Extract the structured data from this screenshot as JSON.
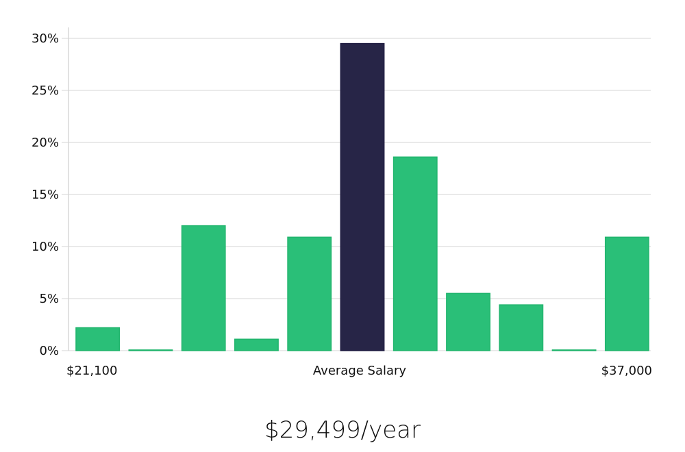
{
  "chart_data": {
    "type": "bar",
    "ylim": [
      0,
      30
    ],
    "yticks": [
      0,
      5,
      10,
      15,
      20,
      25,
      30
    ],
    "ytick_format": "%",
    "values": [
      2.2,
      0.05,
      12.0,
      1.1,
      10.9,
      29.5,
      18.6,
      5.5,
      4.4,
      0.05,
      10.9
    ],
    "highlight_index": 5,
    "x_labels": {
      "left": "$21,100",
      "center": "Average Salary",
      "right": "$37,000"
    },
    "grid": true
  },
  "colors": {
    "bar": "#2abf78",
    "highlight": "#272547",
    "grid": "#e3e3e3",
    "axis": "#d8d8d8"
  },
  "salary": {
    "value": "$29,499/year"
  }
}
